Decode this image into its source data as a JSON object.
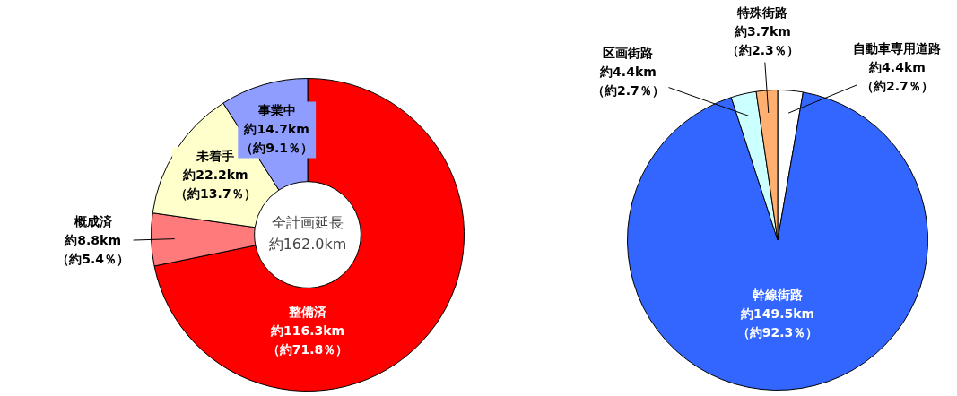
{
  "chart_data": [
    {
      "type": "donut",
      "categories": [
        "整備済",
        "概成済",
        "未着手",
        "事業中"
      ],
      "values": [
        116.3,
        8.8,
        22.2,
        14.7
      ],
      "colors": [
        "#ff0000",
        "#ff7a7a",
        "#ffffcc",
        "#8f9dff"
      ],
      "value_labels": [
        "約116.3km\n（約71.8％）",
        "約8.8km\n（約5.4％）",
        "約22.2km\n（約13.7％）",
        "約14.7km\n（約9.1％）"
      ],
      "annotations": [
        "全計画延長",
        "約162.0km"
      ]
    },
    {
      "type": "pie",
      "categories": [
        "自動車専用道路",
        "幹線街路",
        "区画街路",
        "特殊街路"
      ],
      "values": [
        4.4,
        149.5,
        4.4,
        3.7
      ],
      "colors": [
        "#ffffff",
        "#3366ff",
        "#ccffff",
        "#ffb070"
      ],
      "value_labels": [
        "約4.4km\n（約2.7％）",
        "約149.5km\n（約92.3％）",
        "約4.4km\n（約2.7％）",
        "約3.7km\n（約2.3％）"
      ]
    }
  ]
}
